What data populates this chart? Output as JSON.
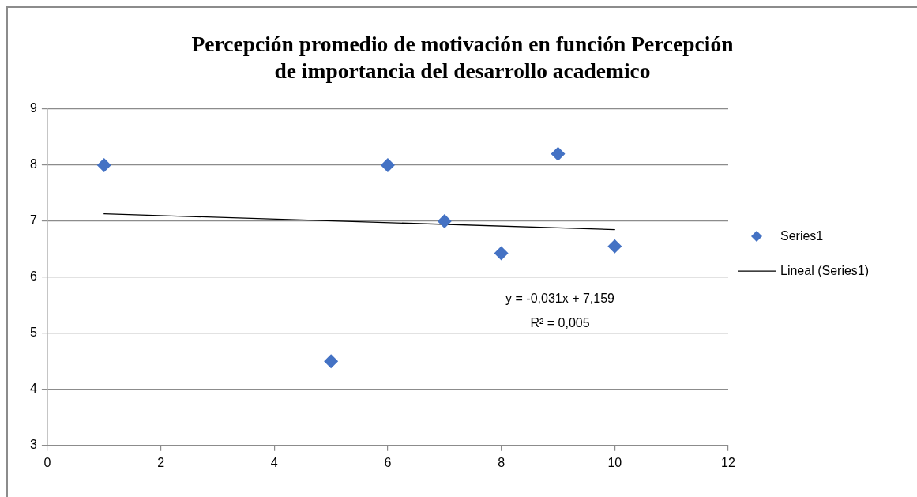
{
  "chart_data": {
    "type": "scatter",
    "title": "Percepción promedio de motivación en función Percepción de importancia del desarrollo academico",
    "x": [
      1,
      5,
      6,
      7,
      8,
      9,
      10
    ],
    "series": [
      {
        "name": "Series1",
        "color": "#4472c4",
        "values": [
          8,
          4.5,
          8,
          7,
          6.43,
          8.2,
          6.55
        ]
      },
      {
        "type": "line",
        "name": "Lineal (Series1)",
        "color": "#000000",
        "x": [
          1,
          10
        ],
        "values": [
          7.13,
          6.85
        ],
        "marker": "none",
        "line_style": "solid"
      }
    ],
    "xlim": [
      0,
      12
    ],
    "xticks": [
      0,
      2,
      4,
      6,
      8,
      10,
      12
    ],
    "ylim": [
      3,
      9
    ],
    "yticks": [
      3,
      4,
      5,
      6,
      7,
      8,
      9
    ],
    "grid": "y",
    "legend": "right",
    "marker": "diamond",
    "annotations": [
      "y = -0,031x + 7,159",
      "R² = 0,005"
    ]
  }
}
